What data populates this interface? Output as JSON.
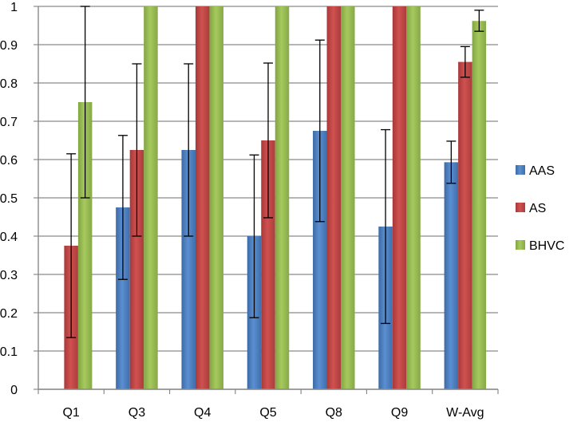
{
  "chart_data": {
    "type": "bar",
    "categories": [
      "Q1",
      "Q3",
      "Q4",
      "Q5",
      "Q8",
      "Q9",
      "W-Avg"
    ],
    "series": [
      {
        "name": "AAS",
        "color": "#4a7ebb",
        "values": [
          0,
          0.475,
          0.625,
          0.4,
          0.675,
          0.425,
          0.593
        ],
        "error_low": [
          null,
          0.287,
          0.4,
          0.187,
          0.438,
          0.172,
          0.538
        ],
        "error_high": [
          null,
          0.663,
          0.85,
          0.612,
          0.912,
          0.678,
          0.648
        ]
      },
      {
        "name": "AS",
        "color": "#be4b48",
        "values": [
          0.375,
          0.625,
          1,
          0.65,
          1,
          1,
          0.855
        ],
        "error_low": [
          0.135,
          0.4,
          null,
          0.448,
          null,
          null,
          0.815
        ],
        "error_high": [
          0.615,
          0.85,
          null,
          0.852,
          null,
          null,
          0.895
        ]
      },
      {
        "name": "BHVC",
        "color": "#98b954",
        "values": [
          0.75,
          1,
          1,
          1,
          1,
          1,
          0.962
        ],
        "error_low": [
          0.5,
          null,
          null,
          null,
          null,
          null,
          0.935
        ],
        "error_high": [
          1.0,
          null,
          null,
          null,
          null,
          null,
          0.99
        ]
      }
    ],
    "y_ticks": [
      "0",
      "0.1",
      "0.2",
      "0.3",
      "0.4",
      "0.5",
      "0.6",
      "0.7",
      "0.8",
      "0.9",
      "1"
    ],
    "ylim": [
      0,
      1
    ],
    "grid": true,
    "legend_position": "right",
    "title": "",
    "xlabel": "",
    "ylabel": ""
  }
}
